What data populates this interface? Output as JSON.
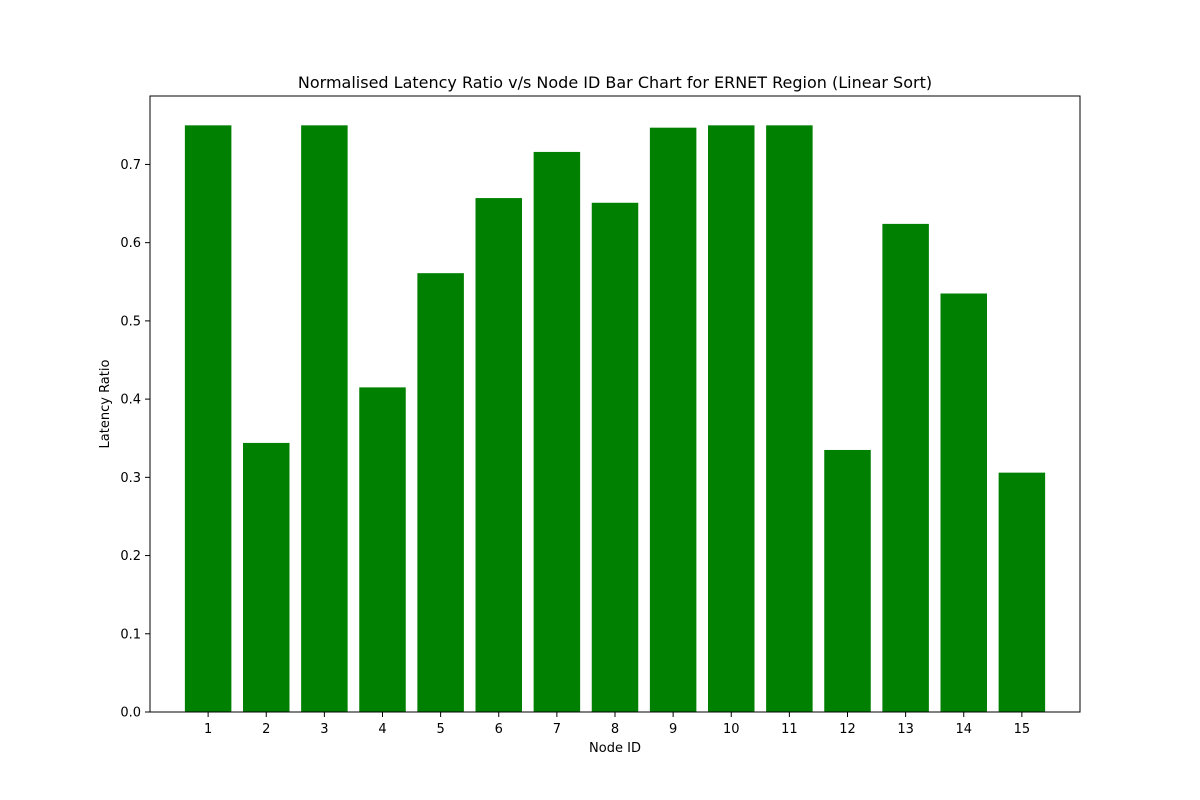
{
  "chart_data": {
    "type": "bar",
    "title": "Normalised Latency Ratio v/s Node ID Bar Chart for ERNET Region (Linear Sort)",
    "xlabel": "Node ID",
    "ylabel": "Latency Ratio",
    "categories": [
      "1",
      "2",
      "3",
      "4",
      "5",
      "6",
      "7",
      "8",
      "9",
      "10",
      "11",
      "12",
      "13",
      "14",
      "15"
    ],
    "values": [
      0.75,
      0.344,
      0.75,
      0.415,
      0.561,
      0.657,
      0.716,
      0.651,
      0.747,
      0.75,
      0.75,
      0.335,
      0.624,
      0.535,
      0.306
    ],
    "ylim": [
      0,
      0.7875
    ],
    "yticks": [
      "0.0",
      "0.1",
      "0.2",
      "0.3",
      "0.4",
      "0.5",
      "0.6",
      "0.7"
    ],
    "bar_color": "#008000",
    "grid": false,
    "legend": "none"
  }
}
